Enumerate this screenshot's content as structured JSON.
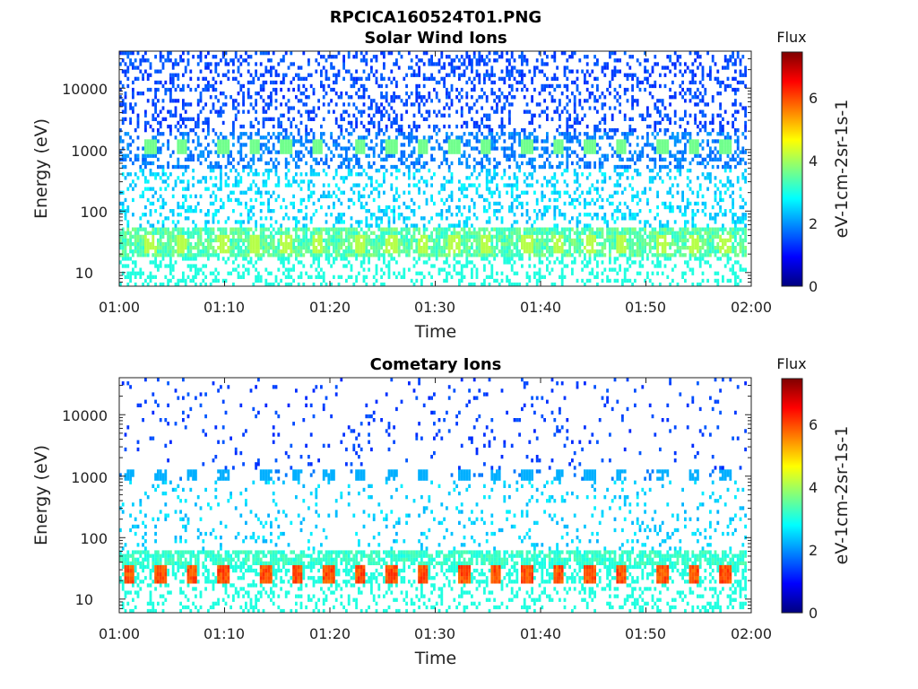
{
  "figure_title": "RPCICA160524T01.PNG",
  "colormap": [
    "#00007f",
    "#0000ff",
    "#007fff",
    "#00ffff",
    "#7fff7f",
    "#ffff00",
    "#ff7f00",
    "#ff0000",
    "#7f0000"
  ],
  "chart_data": [
    {
      "type": "heatmap",
      "title": "Solar Wind Ions",
      "xlabel": "Time",
      "ylabel": "Energy (eV)",
      "x_ticks": [
        "01:00",
        "01:10",
        "01:20",
        "01:30",
        "01:40",
        "01:50",
        "02:00"
      ],
      "xlim": [
        "01:00",
        "02:00"
      ],
      "y_scale": "log",
      "y_ticks": [
        "10",
        "100",
        "1000",
        "10000"
      ],
      "ylim": [
        6,
        40000
      ],
      "colorbar": {
        "title": "Flux",
        "label": "eV-1cm-2sr-1s-1",
        "range": [
          0,
          7.4
        ],
        "ticks": [
          "0",
          "2",
          "4",
          "6"
        ]
      },
      "features": [
        {
          "name": "periodic band near 1000 eV",
          "energy_eV": 1100,
          "flux": 3.5,
          "times": [
            "01:03",
            "01:06",
            "01:10",
            "01:13",
            "01:16",
            "01:19",
            "01:23",
            "01:26",
            "01:29",
            "01:32",
            "01:35",
            "01:39",
            "01:42",
            "01:45",
            "01:48",
            "01:52",
            "01:55",
            "01:58"
          ]
        },
        {
          "name": "low-energy band 20-50 eV",
          "energy_min_eV": 20,
          "energy_max_eV": 50,
          "flux": 3.2
        }
      ]
    },
    {
      "type": "heatmap",
      "title": "Cometary Ions",
      "xlabel": "Time",
      "ylabel": "Energy (eV)",
      "x_ticks": [
        "01:00",
        "01:10",
        "01:20",
        "01:30",
        "01:40",
        "01:50",
        "02:00"
      ],
      "xlim": [
        "01:00",
        "02:00"
      ],
      "y_scale": "log",
      "y_ticks": [
        "10",
        "100",
        "1000",
        "10000"
      ],
      "ylim": [
        6,
        40000
      ],
      "colorbar": {
        "title": "Flux",
        "label": "eV-1cm-2sr-1s-1",
        "range": [
          0,
          7.4
        ],
        "ticks": [
          "0",
          "2",
          "4",
          "6"
        ]
      },
      "features": [
        {
          "name": "periodic cometary ion peaks 20-35 eV",
          "energy_min_eV": 20,
          "energy_max_eV": 35,
          "flux": 5.8,
          "times": [
            "01:01",
            "01:04",
            "01:07",
            "01:10",
            "01:14",
            "01:17",
            "01:20",
            "01:23",
            "01:26",
            "01:29",
            "01:33",
            "01:36",
            "01:39",
            "01:42",
            "01:45",
            "01:48",
            "01:52",
            "01:55",
            "01:58"
          ]
        },
        {
          "name": "sparse band near 1000 eV",
          "energy_eV": 1000,
          "flux": 2.3
        }
      ]
    }
  ]
}
